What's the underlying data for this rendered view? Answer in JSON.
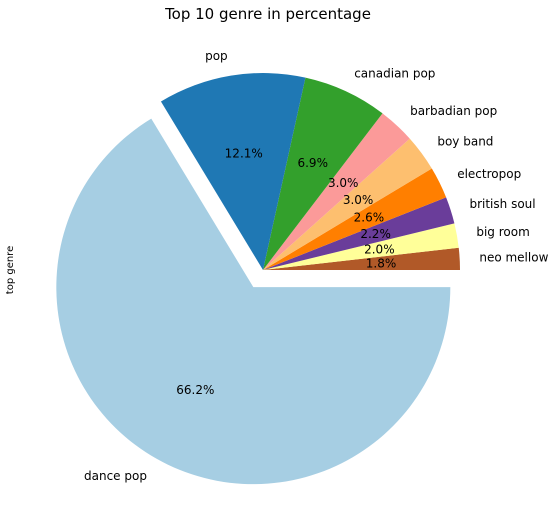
{
  "chart_data": {
    "type": "pie",
    "title": "Top 10 genre in percentage",
    "ylabel": "top genre",
    "start_angle_deg": 0,
    "direction": "counterclockwise",
    "exploded": [
      "dance pop"
    ],
    "slices": [
      {
        "label": "neo mellow",
        "value": 1.8,
        "pct_label": "1.8%",
        "color": "#b15928"
      },
      {
        "label": "big room",
        "value": 2.0,
        "pct_label": "2.0%",
        "color": "#ffff99"
      },
      {
        "label": "british soul",
        "value": 2.2,
        "pct_label": "2.2%",
        "color": "#6a3d9a"
      },
      {
        "label": "electropop",
        "value": 2.6,
        "pct_label": "2.6%",
        "color": "#ff7f00"
      },
      {
        "label": "boy band",
        "value": 3.0,
        "pct_label": "3.0%",
        "color": "#fdbf6f"
      },
      {
        "label": "barbadian pop",
        "value": 3.0,
        "pct_label": "3.0%",
        "color": "#fb9a99"
      },
      {
        "label": "canadian pop",
        "value": 6.9,
        "pct_label": "6.9%",
        "color": "#33a02c"
      },
      {
        "label": "pop",
        "value": 12.1,
        "pct_label": "12.1%",
        "color": "#1f78b4"
      },
      {
        "label": "dance pop",
        "value": 66.2,
        "pct_label": "66.2%",
        "color": "#a6cee3"
      }
    ]
  }
}
